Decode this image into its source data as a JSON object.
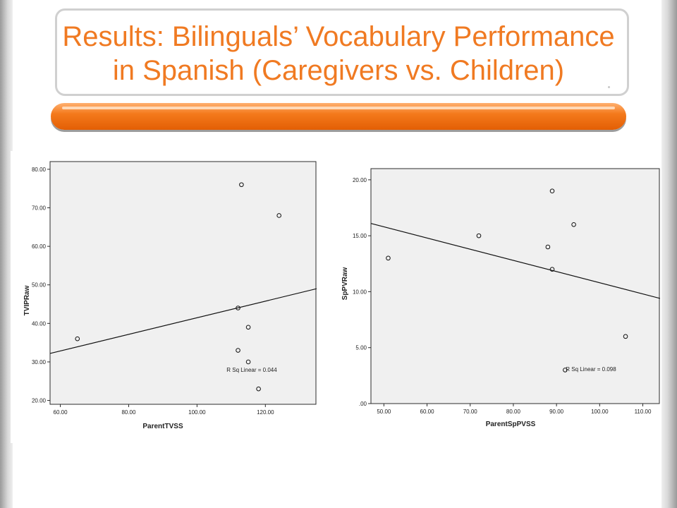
{
  "slide": {
    "title_line1": "Results: Bilinguals’ Vocabulary Performance",
    "title_line2": "in Spanish (Caregivers vs. Children)",
    "title_color": "#f07a22",
    "accent_bar_color": "#f47a1c"
  },
  "chart_data": [
    {
      "type": "scatter",
      "xlabel": "ParentTVSS",
      "ylabel": "TVIPRaw",
      "x_ticks": [
        "60.00",
        "80.00",
        "100.00",
        "120.00"
      ],
      "y_ticks": [
        "20.00",
        "30.00",
        "40.00",
        "50.00",
        "60.00",
        "70.00",
        "80.00"
      ],
      "xlim": [
        57,
        135
      ],
      "ylim": [
        19,
        82
      ],
      "points": [
        {
          "x": 65,
          "y": 36
        },
        {
          "x": 113,
          "y": 76
        },
        {
          "x": 124,
          "y": 68
        },
        {
          "x": 112,
          "y": 44
        },
        {
          "x": 115,
          "y": 39
        },
        {
          "x": 112,
          "y": 33
        },
        {
          "x": 115,
          "y": 30
        },
        {
          "x": 118,
          "y": 23
        }
      ],
      "fit_line": {
        "x": [
          57,
          135
        ],
        "y": [
          32.2,
          49.0
        ]
      },
      "annotation": "R Sq Linear = 0.044",
      "grid": false
    },
    {
      "type": "scatter",
      "xlabel": "ParentSpPVSS",
      "ylabel": "SpPVRaw",
      "x_ticks": [
        "50.00",
        "60.00",
        "70.00",
        "80.00",
        "90.00",
        "100.00",
        "110.00"
      ],
      "y_ticks": [
        ".00",
        "5.00",
        "10.00",
        "15.00",
        "20.00"
      ],
      "xlim": [
        47,
        114
      ],
      "ylim": [
        0,
        21
      ],
      "points": [
        {
          "x": 51,
          "y": 13
        },
        {
          "x": 72,
          "y": 15
        },
        {
          "x": 89,
          "y": 19
        },
        {
          "x": 94,
          "y": 16
        },
        {
          "x": 88,
          "y": 14
        },
        {
          "x": 89,
          "y": 12
        },
        {
          "x": 92,
          "y": 3
        },
        {
          "x": 106,
          "y": 6
        }
      ],
      "fit_line": {
        "x": [
          47,
          114
        ],
        "y": [
          16.1,
          9.4
        ]
      },
      "annotation": "R Sq Linear = 0.098",
      "grid": false
    }
  ]
}
